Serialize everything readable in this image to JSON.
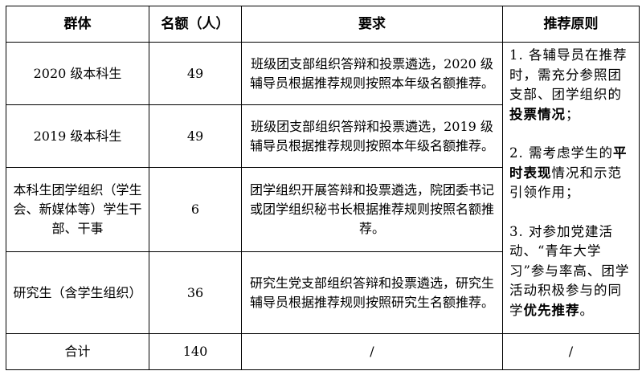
{
  "table": {
    "headers": [
      "群体",
      "名额（人）",
      "要求",
      "推荐原则"
    ],
    "rows": [
      {
        "group": "2020 级本科生",
        "quota": "49",
        "requirement": "班级团支部组织答辩和投票遴选，2020 级辅导员根据推荐规则按照本年级名额推荐。"
      },
      {
        "group": "2019 级本科生",
        "quota": "49",
        "requirement": "班级团支部组织答辩和投票遴选，2019 级辅导员根据推荐规则按照本年级名额推荐。"
      },
      {
        "group": "本科生团学组织（学生会、新媒体等）学生干部、干事",
        "quota": "6",
        "requirement": "团学组织开展答辩和投票遴选，院团委书记或团学组织秘书长根据推荐规则按照名额推荐。"
      },
      {
        "group": "研究生（含学生组织）",
        "quota": "36",
        "requirement": "研究生党支部组织答辩和投票遴选，研究生辅导员根据推荐规则按照研究生名额推荐。"
      }
    ],
    "principles": [
      {
        "pre": "1. 各辅导员在推荐时，需充分参照团支部、团学组织的",
        "bold": "投票情况",
        "post": "；"
      },
      {
        "pre": "2. 需考虑学生的",
        "bold": "平时表现",
        "post": "情况和示范引领作用；"
      },
      {
        "pre": "3. 对参加党建活动、“青年大学习”参与率高、团学活动积极参与的同学",
        "bold": "优先推荐",
        "post": "。"
      }
    ],
    "total": {
      "label": "合计",
      "quota": "140",
      "requirement": "/",
      "principle": "/"
    }
  }
}
